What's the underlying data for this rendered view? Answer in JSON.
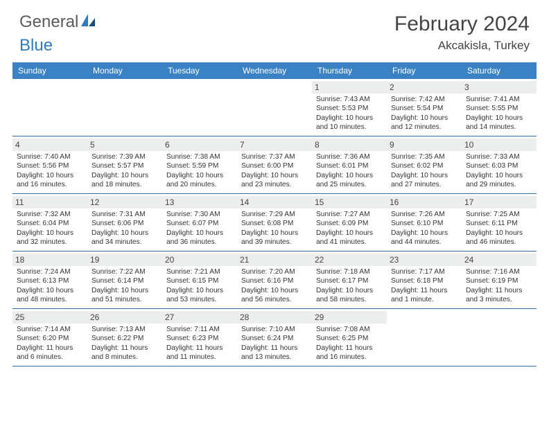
{
  "logo": {
    "general": "General",
    "blue": "Blue"
  },
  "title": "February 2024",
  "location": "Akcakisla, Turkey",
  "colors": {
    "header_bg": "#3b82c4",
    "header_fg": "#ffffff",
    "date_bg": "#eceded",
    "row_border": "#2e6da8",
    "text": "#333333",
    "logo_gray": "#5a5a5a",
    "logo_blue": "#2f7bbf"
  },
  "day_names": [
    "Sunday",
    "Monday",
    "Tuesday",
    "Wednesday",
    "Thursday",
    "Friday",
    "Saturday"
  ],
  "grid": [
    [
      {
        "empty": true
      },
      {
        "empty": true
      },
      {
        "empty": true
      },
      {
        "empty": true
      },
      {
        "d": "1",
        "sr": "Sunrise: 7:43 AM",
        "ss": "Sunset: 5:53 PM",
        "dl1": "Daylight: 10 hours",
        "dl2": "and 10 minutes."
      },
      {
        "d": "2",
        "sr": "Sunrise: 7:42 AM",
        "ss": "Sunset: 5:54 PM",
        "dl1": "Daylight: 10 hours",
        "dl2": "and 12 minutes."
      },
      {
        "d": "3",
        "sr": "Sunrise: 7:41 AM",
        "ss": "Sunset: 5:55 PM",
        "dl1": "Daylight: 10 hours",
        "dl2": "and 14 minutes."
      }
    ],
    [
      {
        "d": "4",
        "sr": "Sunrise: 7:40 AM",
        "ss": "Sunset: 5:56 PM",
        "dl1": "Daylight: 10 hours",
        "dl2": "and 16 minutes."
      },
      {
        "d": "5",
        "sr": "Sunrise: 7:39 AM",
        "ss": "Sunset: 5:57 PM",
        "dl1": "Daylight: 10 hours",
        "dl2": "and 18 minutes."
      },
      {
        "d": "6",
        "sr": "Sunrise: 7:38 AM",
        "ss": "Sunset: 5:59 PM",
        "dl1": "Daylight: 10 hours",
        "dl2": "and 20 minutes."
      },
      {
        "d": "7",
        "sr": "Sunrise: 7:37 AM",
        "ss": "Sunset: 6:00 PM",
        "dl1": "Daylight: 10 hours",
        "dl2": "and 23 minutes."
      },
      {
        "d": "8",
        "sr": "Sunrise: 7:36 AM",
        "ss": "Sunset: 6:01 PM",
        "dl1": "Daylight: 10 hours",
        "dl2": "and 25 minutes."
      },
      {
        "d": "9",
        "sr": "Sunrise: 7:35 AM",
        "ss": "Sunset: 6:02 PM",
        "dl1": "Daylight: 10 hours",
        "dl2": "and 27 minutes."
      },
      {
        "d": "10",
        "sr": "Sunrise: 7:33 AM",
        "ss": "Sunset: 6:03 PM",
        "dl1": "Daylight: 10 hours",
        "dl2": "and 29 minutes."
      }
    ],
    [
      {
        "d": "11",
        "sr": "Sunrise: 7:32 AM",
        "ss": "Sunset: 6:04 PM",
        "dl1": "Daylight: 10 hours",
        "dl2": "and 32 minutes."
      },
      {
        "d": "12",
        "sr": "Sunrise: 7:31 AM",
        "ss": "Sunset: 6:06 PM",
        "dl1": "Daylight: 10 hours",
        "dl2": "and 34 minutes."
      },
      {
        "d": "13",
        "sr": "Sunrise: 7:30 AM",
        "ss": "Sunset: 6:07 PM",
        "dl1": "Daylight: 10 hours",
        "dl2": "and 36 minutes."
      },
      {
        "d": "14",
        "sr": "Sunrise: 7:29 AM",
        "ss": "Sunset: 6:08 PM",
        "dl1": "Daylight: 10 hours",
        "dl2": "and 39 minutes."
      },
      {
        "d": "15",
        "sr": "Sunrise: 7:27 AM",
        "ss": "Sunset: 6:09 PM",
        "dl1": "Daylight: 10 hours",
        "dl2": "and 41 minutes."
      },
      {
        "d": "16",
        "sr": "Sunrise: 7:26 AM",
        "ss": "Sunset: 6:10 PM",
        "dl1": "Daylight: 10 hours",
        "dl2": "and 44 minutes."
      },
      {
        "d": "17",
        "sr": "Sunrise: 7:25 AM",
        "ss": "Sunset: 6:11 PM",
        "dl1": "Daylight: 10 hours",
        "dl2": "and 46 minutes."
      }
    ],
    [
      {
        "d": "18",
        "sr": "Sunrise: 7:24 AM",
        "ss": "Sunset: 6:13 PM",
        "dl1": "Daylight: 10 hours",
        "dl2": "and 48 minutes."
      },
      {
        "d": "19",
        "sr": "Sunrise: 7:22 AM",
        "ss": "Sunset: 6:14 PM",
        "dl1": "Daylight: 10 hours",
        "dl2": "and 51 minutes."
      },
      {
        "d": "20",
        "sr": "Sunrise: 7:21 AM",
        "ss": "Sunset: 6:15 PM",
        "dl1": "Daylight: 10 hours",
        "dl2": "and 53 minutes."
      },
      {
        "d": "21",
        "sr": "Sunrise: 7:20 AM",
        "ss": "Sunset: 6:16 PM",
        "dl1": "Daylight: 10 hours",
        "dl2": "and 56 minutes."
      },
      {
        "d": "22",
        "sr": "Sunrise: 7:18 AM",
        "ss": "Sunset: 6:17 PM",
        "dl1": "Daylight: 10 hours",
        "dl2": "and 58 minutes."
      },
      {
        "d": "23",
        "sr": "Sunrise: 7:17 AM",
        "ss": "Sunset: 6:18 PM",
        "dl1": "Daylight: 11 hours",
        "dl2": "and 1 minute."
      },
      {
        "d": "24",
        "sr": "Sunrise: 7:16 AM",
        "ss": "Sunset: 6:19 PM",
        "dl1": "Daylight: 11 hours",
        "dl2": "and 3 minutes."
      }
    ],
    [
      {
        "d": "25",
        "sr": "Sunrise: 7:14 AM",
        "ss": "Sunset: 6:20 PM",
        "dl1": "Daylight: 11 hours",
        "dl2": "and 6 minutes."
      },
      {
        "d": "26",
        "sr": "Sunrise: 7:13 AM",
        "ss": "Sunset: 6:22 PM",
        "dl1": "Daylight: 11 hours",
        "dl2": "and 8 minutes."
      },
      {
        "d": "27",
        "sr": "Sunrise: 7:11 AM",
        "ss": "Sunset: 6:23 PM",
        "dl1": "Daylight: 11 hours",
        "dl2": "and 11 minutes."
      },
      {
        "d": "28",
        "sr": "Sunrise: 7:10 AM",
        "ss": "Sunset: 6:24 PM",
        "dl1": "Daylight: 11 hours",
        "dl2": "and 13 minutes."
      },
      {
        "d": "29",
        "sr": "Sunrise: 7:08 AM",
        "ss": "Sunset: 6:25 PM",
        "dl1": "Daylight: 11 hours",
        "dl2": "and 16 minutes."
      },
      {
        "empty": true
      },
      {
        "empty": true
      }
    ]
  ]
}
